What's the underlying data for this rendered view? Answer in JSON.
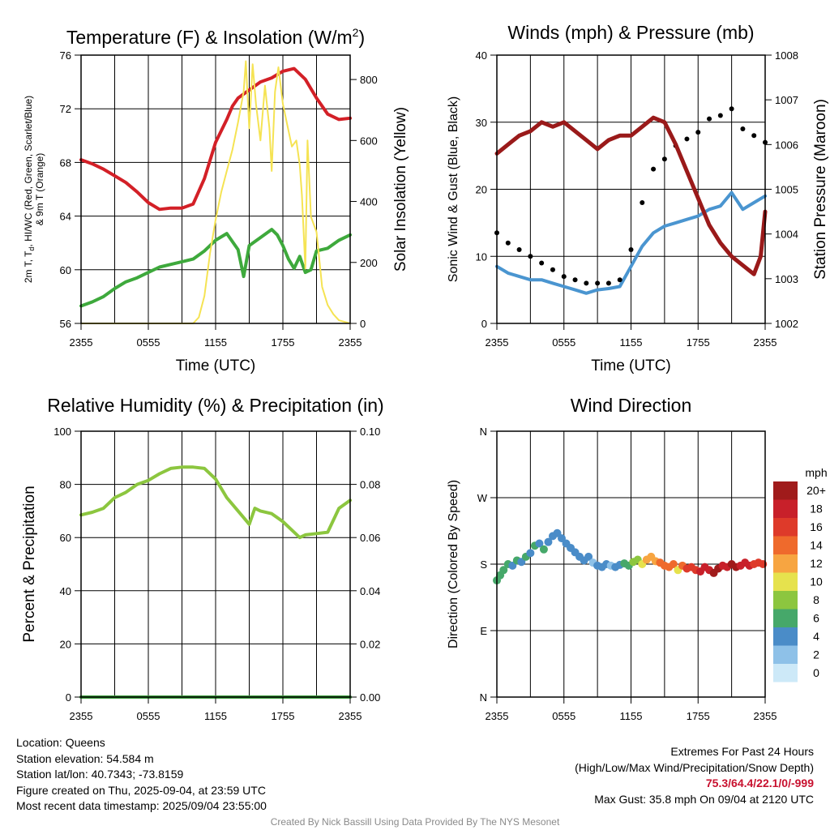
{
  "info": {
    "location": "Location: Queens",
    "elevation": "Station elevation: 54.584 m",
    "latlon": "Station lat/lon: 40.7343; -73.8159",
    "created": "Figure created on Thu, 2025-09-04, at 23:59 UTC",
    "recent": "Most recent data timestamp: 2025/09/04 23:55:00",
    "extremes_title": "Extremes For Past 24 Hours",
    "extremes_sub": "(High/Low/Max Wind/Precipitation/Snow Depth)",
    "extremes_values": "75.3/64.4/22.1/0/-999",
    "max_gust": "Max Gust: 35.8 mph On 09/04 at 2120 UTC",
    "credit": "Created By Nick Bassill Using Data Provided By The NYS Mesonet"
  },
  "chart_data": [
    {
      "type": "line",
      "title": "Temperature (F) & Insolation (W/m²)",
      "xlabel": "Time (UTC)",
      "ylabel": "2m T, Td, HI/WC (Red, Green, Scarlet/Blue) & 9m T (Orange)",
      "ylabel_lines": [
        "2m T, T",
        "d",
        ", HI/WC (Red, Green, Scarlet/Blue)",
        "& 9m T (Orange)"
      ],
      "y2label": "Solar Insolation (Yellow)",
      "x_ticks": [
        "2355",
        "0555",
        "1155",
        "1755",
        "2355"
      ],
      "x_range_hours": [
        0,
        24
      ],
      "ylim": [
        56,
        76
      ],
      "yticks": [
        "56",
        "60",
        "64",
        "68",
        "72",
        "76"
      ],
      "y2lim": [
        0,
        880
      ],
      "y2ticks": [
        "0",
        "200",
        "400",
        "600",
        "800"
      ],
      "series": [
        {
          "color": "#d32027",
          "axis": "left",
          "x": [
            0,
            1,
            2,
            3,
            4,
            5,
            6,
            7,
            8,
            9,
            10,
            11,
            12,
            13,
            13.5,
            14,
            15,
            16,
            17,
            18,
            19,
            20,
            21,
            22,
            23,
            24
          ],
          "y": [
            68.2,
            67.9,
            67.5,
            67.0,
            66.5,
            65.8,
            65.0,
            64.5,
            64.6,
            64.6,
            64.9,
            66.8,
            69.5,
            71.2,
            72.2,
            72.8,
            73.4,
            74.0,
            74.3,
            74.8,
            75.0,
            74.2,
            72.8,
            71.6,
            71.2,
            71.3
          ]
        },
        {
          "color": "#3ea93c",
          "axis": "left",
          "x": [
            0,
            1,
            2,
            3,
            4,
            5,
            6,
            7,
            8,
            9,
            10,
            11,
            12,
            13,
            14,
            14.5,
            15,
            16,
            17,
            17.5,
            18,
            18.5,
            19,
            19.5,
            20,
            20.5,
            21,
            22,
            23,
            24
          ],
          "y": [
            57.3,
            57.6,
            58.0,
            58.6,
            59.1,
            59.4,
            59.8,
            60.2,
            60.4,
            60.6,
            60.8,
            61.4,
            62.2,
            62.7,
            61.5,
            59.5,
            61.8,
            62.4,
            63.0,
            62.6,
            61.8,
            60.8,
            60.1,
            61.0,
            59.8,
            60.0,
            61.4,
            61.6,
            62.2,
            62.6
          ]
        },
        {
          "color": "#f5e353",
          "axis": "right",
          "x": [
            0,
            10,
            10.5,
            11,
            11.5,
            12,
            12.5,
            13,
            13.5,
            14,
            14.5,
            14.7,
            15,
            15.3,
            15.6,
            16,
            16.4,
            16.8,
            17,
            17.3,
            17.6,
            18,
            18.4,
            18.8,
            19.2,
            19.5,
            19.7,
            20,
            20.2,
            20.5,
            21,
            21.5,
            22,
            22.5,
            23,
            24
          ],
          "y": [
            0,
            0,
            20,
            90,
            230,
            340,
            430,
            500,
            570,
            660,
            760,
            860,
            640,
            850,
            720,
            600,
            780,
            640,
            500,
            760,
            840,
            720,
            650,
            580,
            600,
            520,
            420,
            180,
            600,
            350,
            300,
            120,
            60,
            30,
            10,
            0
          ]
        }
      ]
    },
    {
      "type": "line",
      "title": "Winds (mph) & Pressure (mb)",
      "xlabel": "Time (UTC)",
      "ylabel": "Sonic Wind & Gust (Blue, Black)",
      "y2label": "Station Pressure (Maroon)",
      "x_ticks": [
        "2355",
        "0555",
        "1155",
        "1755",
        "2355"
      ],
      "x_range_hours": [
        0,
        24
      ],
      "ylim": [
        0,
        40
      ],
      "yticks": [
        "0",
        "10",
        "20",
        "30",
        "40"
      ],
      "y2lim": [
        1002,
        1008
      ],
      "y2ticks": [
        "1002",
        "1003",
        "1004",
        "1005",
        "1006",
        "1007",
        "1008"
      ],
      "series": [
        {
          "color": "#4a95d0",
          "axis": "left",
          "style": "line",
          "x": [
            0,
            1,
            2,
            3,
            4,
            5,
            6,
            7,
            8,
            9,
            10,
            11,
            12,
            13,
            14,
            15,
            16,
            17,
            18,
            19,
            20,
            21,
            22,
            23,
            24
          ],
          "y": [
            8.5,
            7.5,
            7.0,
            6.5,
            6.5,
            6.0,
            5.5,
            5.0,
            4.5,
            5.0,
            5.2,
            5.5,
            8.5,
            11.5,
            13.5,
            14.5,
            15.0,
            15.5,
            16.0,
            17.0,
            17.5,
            19.5,
            17.0,
            18.0,
            19.0
          ]
        },
        {
          "color": "#000000",
          "axis": "left",
          "style": "dots",
          "x": [
            0,
            1,
            2,
            3,
            4,
            5,
            6,
            7,
            8,
            9,
            10,
            11,
            12,
            13,
            14,
            15,
            16,
            17,
            18,
            19,
            20,
            21,
            22,
            23,
            24
          ],
          "y": [
            13.5,
            12.0,
            11.0,
            10.0,
            9.0,
            8.0,
            7.0,
            6.5,
            6.0,
            6.0,
            6.0,
            6.5,
            11.0,
            18.0,
            23.0,
            24.5,
            26.5,
            27.5,
            28.5,
            30.5,
            31.0,
            32.0,
            29.0,
            28.0,
            27.0
          ]
        },
        {
          "color": "#9a1a1a",
          "axis": "right",
          "style": "line",
          "x": [
            0,
            1,
            2,
            3,
            4,
            5,
            6,
            7,
            8,
            9,
            10,
            11,
            12,
            13,
            14,
            15,
            16,
            17,
            18,
            19,
            20,
            21,
            22,
            23,
            23.6,
            24
          ],
          "y": [
            1005.8,
            1006.0,
            1006.2,
            1006.3,
            1006.5,
            1006.4,
            1006.5,
            1006.3,
            1006.1,
            1005.9,
            1006.1,
            1006.2,
            1006.2,
            1006.4,
            1006.6,
            1006.5,
            1006.0,
            1005.4,
            1004.8,
            1004.2,
            1003.8,
            1003.5,
            1003.3,
            1003.1,
            1003.5,
            1004.5
          ]
        }
      ]
    },
    {
      "type": "line",
      "title": "Relative Humidity (%) & Precipitation (in)",
      "ylabel": "Percent & Precipitation",
      "x_ticks": [
        "2355",
        "0555",
        "1155",
        "1755",
        "2355"
      ],
      "x_range_hours": [
        0,
        24
      ],
      "ylim": [
        0,
        100
      ],
      "yticks": [
        "0",
        "20",
        "40",
        "60",
        "80",
        "100"
      ],
      "y2lim": [
        0,
        0.1
      ],
      "y2ticks": [
        "0.00",
        "0.02",
        "0.04",
        "0.06",
        "0.08",
        "0.10"
      ],
      "series": [
        {
          "color": "#8cc63f",
          "axis": "left",
          "x": [
            0,
            1,
            2,
            3,
            4,
            5,
            6,
            7,
            8,
            9,
            10,
            11,
            12,
            13,
            14,
            15,
            15.5,
            16,
            17,
            18,
            19,
            19.5,
            20,
            21,
            22,
            23,
            24
          ],
          "y": [
            68.5,
            69.5,
            71.0,
            75.0,
            77.0,
            80.0,
            81.5,
            84.0,
            86.0,
            86.5,
            86.5,
            86.0,
            82.0,
            75.0,
            70.0,
            65.0,
            71.0,
            70.0,
            69.0,
            66.0,
            62.0,
            60.0,
            61.0,
            61.5,
            62.0,
            71.0,
            74.0
          ]
        },
        {
          "color": "#3a9c3a",
          "axis": "right",
          "x": [
            0,
            24
          ],
          "y": [
            0,
            0
          ]
        }
      ]
    },
    {
      "type": "scatter",
      "title": "Wind Direction",
      "ylabel": "Direction (Colored By Speed)",
      "x_ticks": [
        "2355",
        "0555",
        "1155",
        "1755",
        "2355"
      ],
      "x_range_hours": [
        0,
        24
      ],
      "ylim": [
        0,
        360
      ],
      "yticks": [
        "N",
        "E",
        "S",
        "W",
        "N"
      ],
      "ytick_values": [
        0,
        90,
        180,
        270,
        360
      ],
      "colorbar": {
        "title": "mph",
        "labels": [
          "20+",
          "18",
          "16",
          "14",
          "12",
          "10",
          "8",
          "6",
          "4",
          "2",
          "0"
        ],
        "colors": [
          "#a01b1b",
          "#c8202a",
          "#de3a2a",
          "#ef6a2c",
          "#f7a541",
          "#e6e24d",
          "#8cc63f",
          "#46a86a",
          "#4a8cc8",
          "#8ec1e8",
          "#cde9f8"
        ]
      },
      "points": [
        [
          0.0,
          158,
          6
        ],
        [
          0.3,
          165,
          7
        ],
        [
          0.6,
          172,
          7
        ],
        [
          1.0,
          180,
          6
        ],
        [
          1.4,
          178,
          5
        ],
        [
          1.8,
          185,
          6
        ],
        [
          2.2,
          183,
          5
        ],
        [
          2.6,
          190,
          6
        ],
        [
          3.0,
          195,
          5
        ],
        [
          3.4,
          205,
          6
        ],
        [
          3.8,
          208,
          5
        ],
        [
          4.2,
          200,
          6
        ],
        [
          4.6,
          210,
          5
        ],
        [
          5.0,
          218,
          4
        ],
        [
          5.4,
          222,
          4
        ],
        [
          5.8,
          215,
          4
        ],
        [
          6.2,
          208,
          4
        ],
        [
          6.6,
          202,
          4
        ],
        [
          7.0,
          196,
          4
        ],
        [
          7.4,
          190,
          4
        ],
        [
          7.8,
          185,
          4
        ],
        [
          8.2,
          190,
          4
        ],
        [
          8.6,
          182,
          3
        ],
        [
          9.0,
          178,
          4
        ],
        [
          9.4,
          176,
          4
        ],
        [
          9.8,
          180,
          4
        ],
        [
          10.2,
          178,
          3
        ],
        [
          10.6,
          176,
          4
        ],
        [
          11.0,
          179,
          5
        ],
        [
          11.4,
          181,
          6
        ],
        [
          11.8,
          178,
          7
        ],
        [
          12.2,
          183,
          8
        ],
        [
          12.6,
          186,
          9
        ],
        [
          13.0,
          180,
          10
        ],
        [
          13.4,
          186,
          12
        ],
        [
          13.8,
          190,
          12
        ],
        [
          14.2,
          184,
          13
        ],
        [
          14.6,
          182,
          14
        ],
        [
          15.0,
          178,
          14
        ],
        [
          15.4,
          176,
          15
        ],
        [
          15.8,
          180,
          14
        ],
        [
          16.2,
          172,
          10
        ],
        [
          16.6,
          178,
          15
        ],
        [
          17.0,
          174,
          16
        ],
        [
          17.4,
          176,
          16
        ],
        [
          17.8,
          172,
          17
        ],
        [
          18.2,
          170,
          18
        ],
        [
          18.6,
          176,
          18
        ],
        [
          19.0,
          172,
          19
        ],
        [
          19.4,
          168,
          20
        ],
        [
          19.8,
          174,
          20
        ],
        [
          20.2,
          178,
          19
        ],
        [
          20.6,
          176,
          18
        ],
        [
          21.0,
          180,
          20
        ],
        [
          21.4,
          176,
          20
        ],
        [
          21.8,
          178,
          19
        ],
        [
          22.2,
          182,
          18
        ],
        [
          22.6,
          178,
          18
        ],
        [
          23.0,
          180,
          17
        ],
        [
          23.4,
          182,
          17
        ],
        [
          23.8,
          180,
          16
        ]
      ]
    }
  ]
}
